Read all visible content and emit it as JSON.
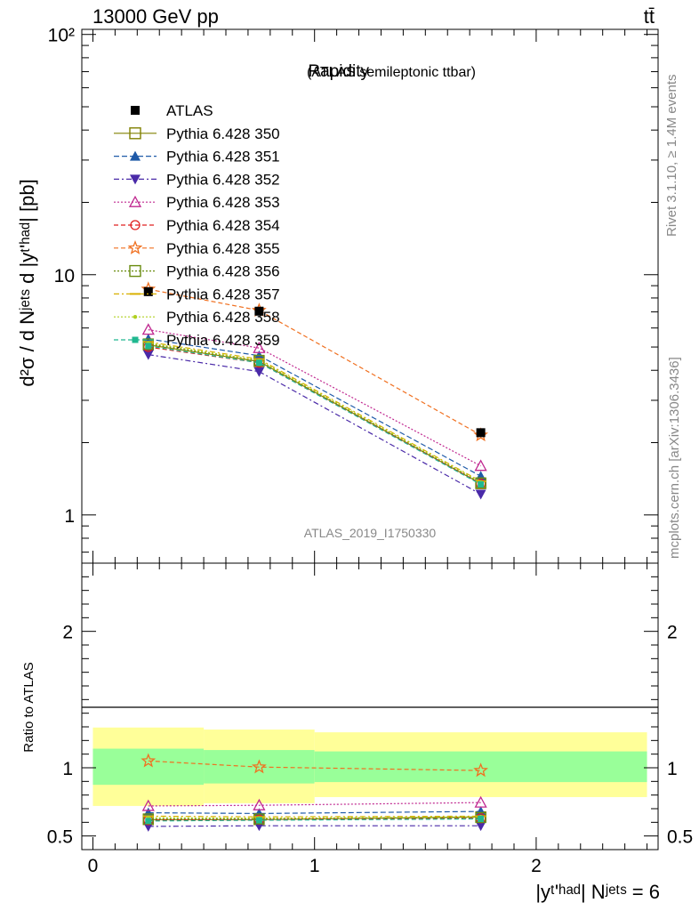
{
  "header": {
    "left": "13000 GeV pp",
    "right": "tt̄"
  },
  "side_labels": {
    "rivet": "Rivet 3.1.10, ≥ 1.4M events",
    "mcplots": "mcplots.cern.ch [arXiv:1306.3436]"
  },
  "chart_data": [
    {
      "type": "line",
      "title_main": "Rapidity",
      "title_sub": "(ATLAS semileptonic ttbar)",
      "ylabel": "d²σ / d Nʲᵉᵗˢ d |yᵗ'ʰᵃᵈ| [pb]",
      "yscale": "log",
      "ylim": [
        0.63,
        105
      ],
      "yticks": [
        "1",
        "10",
        "10²"
      ],
      "xlim": [
        -0.05,
        2.55
      ],
      "watermark": "ATLAS_2019_I1750330",
      "legend_position": "top-left",
      "x": [
        0.25,
        0.75,
        1.75
      ],
      "data": {
        "name": "ATLAS",
        "values": [
          8.5,
          7.05,
          2.2
        ]
      },
      "series": [
        {
          "name": "Pythia 6.428 350",
          "color": "#808000",
          "dash": "",
          "marker": "open-square",
          "values": [
            5.1,
            4.35,
            1.35
          ]
        },
        {
          "name": "Pythia 6.428 351",
          "color": "#1f5aa8",
          "dash": "6,3",
          "marker": "filled-triangle-up",
          "values": [
            5.4,
            4.6,
            1.45
          ]
        },
        {
          "name": "Pythia 6.428 352",
          "color": "#4a2aa8",
          "dash": "6,3,2,3",
          "marker": "filled-triangle-down",
          "values": [
            4.65,
            3.95,
            1.22
          ]
        },
        {
          "name": "Pythia 6.428 353",
          "color": "#c02890",
          "dash": "2,2",
          "marker": "open-triangle-up",
          "values": [
            5.9,
            4.95,
            1.6
          ]
        },
        {
          "name": "Pythia 6.428 354",
          "color": "#e02020",
          "dash": "5,3",
          "marker": "open-circle",
          "values": [
            5.0,
            4.3,
            1.35
          ]
        },
        {
          "name": "Pythia 6.428 355",
          "color": "#f07020",
          "dash": "5,3",
          "marker": "open-star",
          "values": [
            8.7,
            7.1,
            2.15
          ]
        },
        {
          "name": "Pythia 6.428 356",
          "color": "#6a8c10",
          "dash": "2,2",
          "marker": "open-square",
          "values": [
            5.15,
            4.4,
            1.36
          ]
        },
        {
          "name": "Pythia 6.428 357",
          "color": "#d8b000",
          "dash": "6,3,2,3",
          "marker": "dash",
          "values": [
            5.25,
            4.45,
            1.38
          ]
        },
        {
          "name": "Pythia 6.428 358",
          "color": "#b0d020",
          "dash": "2,2",
          "marker": "small-dot",
          "values": [
            5.2,
            4.4,
            1.37
          ]
        },
        {
          "name": "Pythia 6.428 359",
          "color": "#20b890",
          "dash": "5,3",
          "marker": "filled-square",
          "values": [
            5.05,
            4.3,
            1.34
          ]
        }
      ]
    },
    {
      "type": "line",
      "ylabel": "Ratio to ATLAS",
      "ylim": [
        0.4,
        2.5
      ],
      "yticks": [
        "0.5",
        "1",
        "2"
      ],
      "xlabel": "|yᵗ'ʰᵃᵈ| Nʲᵉᵗˢ = 6",
      "xticks": [
        "0",
        "1",
        "2"
      ],
      "xlim": [
        -0.05,
        2.55
      ],
      "x": [
        0.25,
        0.75,
        1.75
      ],
      "bands": [
        {
          "x0": 0.0,
          "x1": 0.5,
          "green": [
            0.875,
            1.14
          ],
          "yellow": [
            0.72,
            1.295
          ]
        },
        {
          "x0": 0.5,
          "x1": 1.0,
          "green": [
            0.885,
            1.13
          ],
          "yellow": [
            0.74,
            1.28
          ]
        },
        {
          "x0": 1.0,
          "x1": 2.5,
          "green": [
            0.895,
            1.12
          ],
          "yellow": [
            0.785,
            1.26
          ]
        }
      ],
      "series": [
        {
          "name": "Pythia 6.428 350",
          "values": [
            0.62,
            0.62,
            0.64
          ]
        },
        {
          "name": "Pythia 6.428 351",
          "values": [
            0.67,
            0.665,
            0.68
          ]
        },
        {
          "name": "Pythia 6.428 352",
          "values": [
            0.57,
            0.575,
            0.575
          ]
        },
        {
          "name": "Pythia 6.428 353",
          "values": [
            0.72,
            0.725,
            0.745
          ]
        },
        {
          "name": "Pythia 6.428 354",
          "values": [
            0.615,
            0.62,
            0.63
          ]
        },
        {
          "name": "Pythia 6.428 355",
          "values": [
            1.05,
            1.005,
            0.98
          ]
        },
        {
          "name": "Pythia 6.428 356",
          "values": [
            0.625,
            0.625,
            0.635
          ]
        },
        {
          "name": "Pythia 6.428 357",
          "values": [
            0.645,
            0.64,
            0.645
          ]
        },
        {
          "name": "Pythia 6.428 358",
          "values": [
            0.635,
            0.63,
            0.64
          ]
        },
        {
          "name": "Pythia 6.428 359",
          "values": [
            0.61,
            0.615,
            0.625
          ]
        }
      ]
    }
  ]
}
